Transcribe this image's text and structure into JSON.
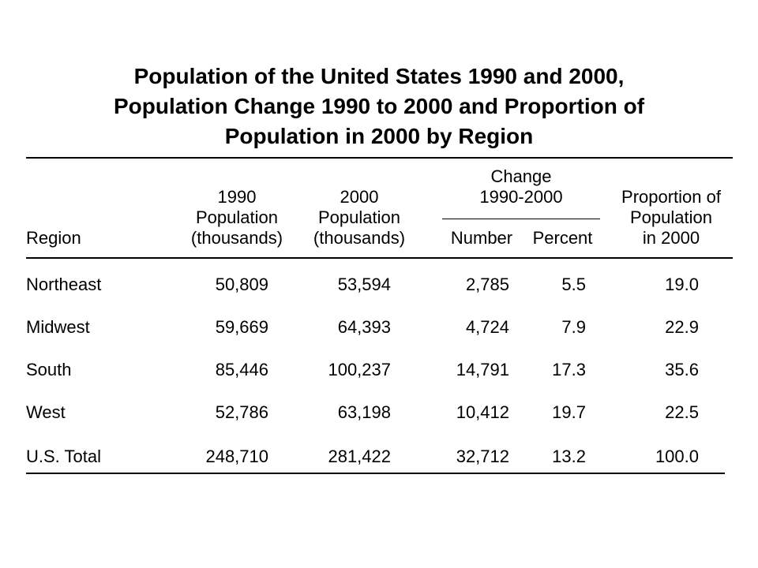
{
  "title": {
    "line1": "Population of the United States 1990 and 2000,",
    "line2": "Population Change 1990 to 2000 and Proportion of",
    "line3": "Population in 2000 by Region"
  },
  "headers": {
    "region": "Region",
    "pop1990": [
      "1990",
      "Population",
      "(thousands)"
    ],
    "pop2000": [
      "2000",
      "Population",
      "(thousands)"
    ],
    "change": [
      "Change",
      "1990-2000"
    ],
    "number": "Number",
    "percent": "Percent",
    "proportion": [
      "Proportion of",
      "Population",
      "in 2000"
    ]
  },
  "rows": [
    {
      "region": "Northeast",
      "pop1990": "50,809",
      "pop2000": "53,594",
      "number": "2,785",
      "percent": "5.5",
      "proportion": "19.0"
    },
    {
      "region": "Midwest",
      "pop1990": "59,669",
      "pop2000": "64,393",
      "number": "4,724",
      "percent": "7.9",
      "proportion": "22.9"
    },
    {
      "region": "South",
      "pop1990": "85,446",
      "pop2000": "100,237",
      "number": "14,791",
      "percent": "17.3",
      "proportion": "35.6"
    },
    {
      "region": "West",
      "pop1990": "52,786",
      "pop2000": "63,198",
      "number": "10,412",
      "percent": "19.7",
      "proportion": "22.5"
    },
    {
      "region": "U.S. Total",
      "pop1990": "248,710",
      "pop2000": "281,422",
      "number": "32,712",
      "percent": "13.2",
      "proportion": "100.0"
    }
  ]
}
